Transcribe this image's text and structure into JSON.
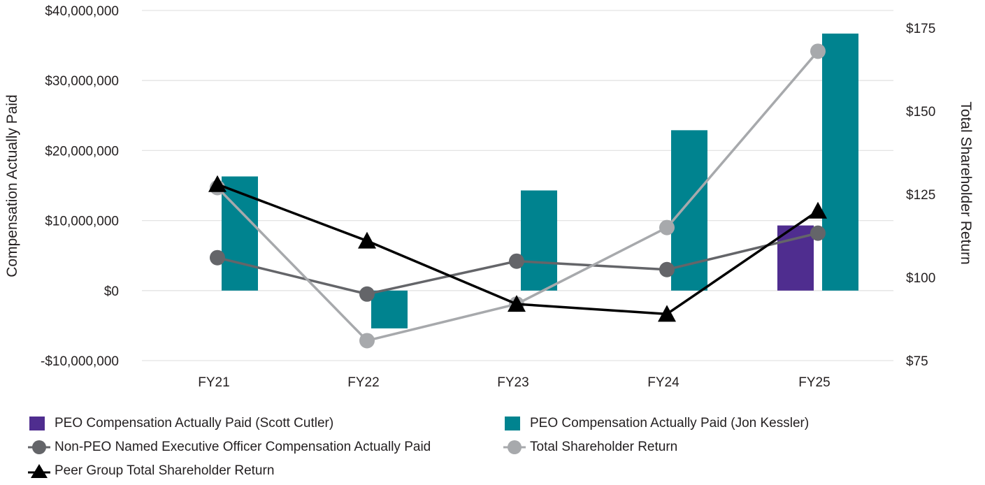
{
  "chart_data": {
    "type": "bar+line",
    "categories": [
      "FY21",
      "FY22",
      "FY23",
      "FY24",
      "FY25"
    ],
    "left_axis": {
      "label": "Compensation Actually Paid",
      "range": [
        -10000000,
        40000000
      ],
      "ticks": [
        "$40,000,000",
        "$30,000,000",
        "$20,000,000",
        "$10,000,000",
        "$0",
        "-$10,000,000"
      ],
      "tick_values": [
        40000000,
        30000000,
        20000000,
        10000000,
        0,
        -10000000
      ]
    },
    "right_axis": {
      "label": "Total Shareholder Return",
      "range": [
        75,
        180
      ],
      "ticks": [
        "$175",
        "$150",
        "$125",
        "$100",
        "$75"
      ],
      "tick_values": [
        175,
        150,
        125,
        100,
        75
      ]
    },
    "grid": true,
    "series": [
      {
        "name": "PEO Compensation Actually Paid (Scott Cutler)",
        "kind": "bar",
        "axis": "left",
        "color": "#4f2d8f",
        "values": [
          null,
          null,
          null,
          null,
          9300000
        ]
      },
      {
        "name": "PEO Compensation Actually Paid (Jon Kessler)",
        "kind": "bar",
        "axis": "left",
        "color": "#00838f",
        "values": [
          16300000,
          -5400000,
          14300000,
          22900000,
          36700000
        ]
      },
      {
        "name": "Non-PEO Named Executive Officer Compensation Actually Paid",
        "kind": "line",
        "marker": "circle",
        "axis": "left",
        "color": "#646569",
        "values": [
          4700000,
          -500000,
          4200000,
          3000000,
          8200000
        ]
      },
      {
        "name": "Total Shareholder Return",
        "kind": "line",
        "marker": "circle",
        "axis": "right",
        "color": "#a7a9ac",
        "values": [
          127,
          81,
          92,
          115,
          168
        ]
      },
      {
        "name": "Peer Group Total Shareholder Return",
        "kind": "line",
        "marker": "triangle",
        "axis": "right",
        "color": "#000000",
        "values": [
          128,
          111,
          92,
          89,
          120
        ]
      }
    ],
    "legend_position": "bottom"
  }
}
